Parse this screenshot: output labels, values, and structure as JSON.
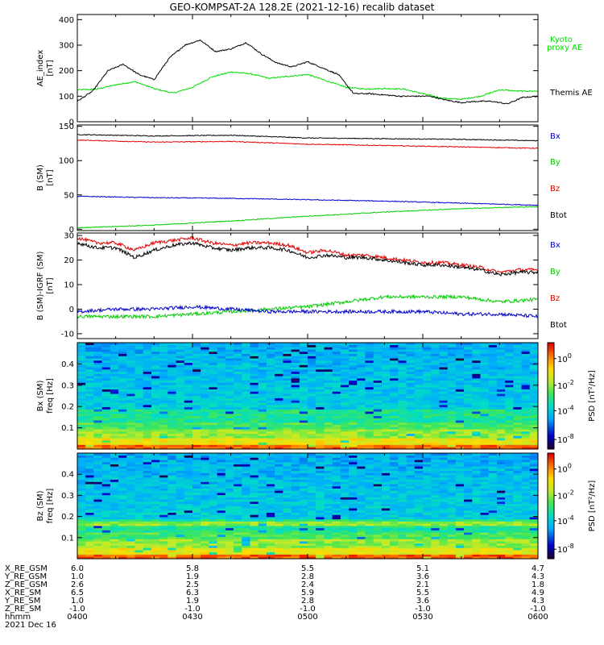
{
  "title": "GEO-KOMPSAT-2A 128.2E (2021-12-16) recalib dataset",
  "colors": {
    "black": "#000000",
    "red": "#e00000",
    "green": "#00cc00",
    "blue": "#0000cc",
    "kyoto": "#00dd00"
  },
  "chart_data": [
    {
      "type": "line",
      "panel": "ae",
      "ylabel_top": "AE_index",
      "ylabel_bottom": "[nT]",
      "ylim": [
        0,
        420
      ],
      "yticks": [
        0,
        100,
        200,
        300,
        400
      ],
      "x_range_hhmm": [
        "0400",
        "0600"
      ],
      "series": [
        {
          "name": "Kyoto proxy AE",
          "color": "#00dd00",
          "x_min": [
            0,
            5,
            10,
            15,
            20,
            25,
            30,
            35,
            40,
            45,
            50,
            55,
            60,
            65,
            70,
            75,
            80,
            85,
            90,
            95,
            100,
            105,
            110,
            115,
            120
          ],
          "values": [
            125,
            127,
            145,
            157,
            130,
            112,
            135,
            175,
            195,
            188,
            170,
            178,
            185,
            160,
            135,
            128,
            130,
            128,
            110,
            92,
            88,
            100,
            125,
            120,
            120
          ]
        },
        {
          "name": "Themis AE",
          "color": "#000000",
          "x_min": [
            0,
            4,
            8,
            12,
            16,
            20,
            24,
            28,
            32,
            36,
            40,
            44,
            48,
            52,
            56,
            60,
            64,
            68,
            72,
            76,
            80,
            84,
            88,
            92,
            96,
            100,
            104,
            108,
            112,
            116,
            120
          ],
          "values": [
            80,
            120,
            200,
            225,
            185,
            165,
            250,
            300,
            320,
            275,
            285,
            310,
            265,
            230,
            215,
            235,
            210,
            185,
            110,
            110,
            105,
            100,
            100,
            100,
            85,
            75,
            80,
            80,
            70,
            95,
            100
          ]
        }
      ],
      "legend": [
        "Kyoto proxy AE",
        "Themis AE"
      ]
    },
    {
      "type": "line",
      "panel": "bsm",
      "ylabel_top": "B (SM)",
      "ylabel_bottom": "[nT]",
      "ylim": [
        -2,
        152
      ],
      "yticks": [
        0,
        50,
        100,
        150
      ],
      "series": [
        {
          "name": "Btot",
          "color": "#000000",
          "x_min": [
            0,
            20,
            40,
            60,
            80,
            100,
            120
          ],
          "values": [
            138,
            136,
            137,
            133,
            132,
            131,
            129
          ]
        },
        {
          "name": "Bz",
          "color": "#e00000",
          "x_min": [
            0,
            20,
            40,
            60,
            80,
            100,
            120
          ],
          "values": [
            130,
            127,
            128,
            124,
            122,
            120,
            118
          ]
        },
        {
          "name": "Bx",
          "color": "#0000cc",
          "x_min": [
            0,
            20,
            40,
            60,
            80,
            100,
            120
          ],
          "values": [
            48,
            46,
            45,
            43,
            41,
            38,
            35
          ]
        },
        {
          "name": "By",
          "color": "#00cc00",
          "x_min": [
            0,
            20,
            40,
            60,
            80,
            100,
            120
          ],
          "values": [
            2,
            6,
            12,
            19,
            25,
            30,
            33
          ]
        }
      ],
      "legend": [
        "Bx",
        "By",
        "Bz",
        "Btot"
      ]
    },
    {
      "type": "line",
      "panel": "dbsm",
      "ylabel_top": "B (SM)-IGRF (SM)",
      "ylabel_bottom": "[nT]",
      "ylim": [
        -12,
        31
      ],
      "yticks": [
        -10,
        0,
        10,
        20,
        30
      ],
      "series": [
        {
          "name": "Bz",
          "color": "#e00000",
          "x_min": [
            0,
            5,
            10,
            15,
            20,
            25,
            30,
            35,
            40,
            45,
            50,
            55,
            60,
            65,
            70,
            75,
            80,
            85,
            90,
            95,
            100,
            105,
            110,
            115,
            120
          ],
          "values": [
            29,
            27,
            27,
            24,
            27,
            28,
            29,
            27,
            26,
            27,
            27,
            26,
            23,
            24,
            22,
            22,
            21,
            20,
            19,
            19,
            18,
            17,
            15,
            16,
            16
          ]
        },
        {
          "name": "Btot",
          "color": "#000000",
          "x_min": [
            0,
            5,
            10,
            15,
            20,
            25,
            30,
            35,
            40,
            45,
            50,
            55,
            60,
            65,
            70,
            75,
            80,
            85,
            90,
            95,
            100,
            105,
            110,
            115,
            120
          ],
          "values": [
            27,
            25,
            25,
            21,
            24,
            26,
            27,
            25,
            24,
            25,
            25,
            24,
            21,
            22,
            21,
            21,
            20,
            19,
            18,
            18,
            17,
            16,
            14,
            15,
            15
          ]
        },
        {
          "name": "By",
          "color": "#00cc00",
          "x_min": [
            0,
            10,
            20,
            30,
            40,
            50,
            60,
            70,
            80,
            90,
            100,
            110,
            120
          ],
          "values": [
            -3,
            -3,
            -3,
            -2,
            -1,
            0,
            1,
            3,
            5,
            5,
            5,
            3,
            4
          ]
        },
        {
          "name": "Bx",
          "color": "#0000cc",
          "x_min": [
            0,
            10,
            20,
            30,
            40,
            50,
            60,
            70,
            80,
            90,
            100,
            110,
            120
          ],
          "values": [
            -1,
            0,
            0,
            1,
            0,
            -1,
            -1,
            -1,
            -1,
            -1,
            -2,
            -2,
            -3
          ]
        }
      ],
      "legend": [
        "Bx",
        "By",
        "Bz",
        "Btot"
      ]
    },
    {
      "type": "heatmap",
      "panel": "specbx",
      "ylabel_top": "Bx (SM)",
      "ylabel_bottom": "freq [Hz]",
      "ylim": [
        0,
        0.5
      ],
      "yticks": [
        0.1,
        0.2,
        0.3,
        0.4
      ],
      "colorbar_label": "PSD [nT²/Hz]",
      "colorbar_ticks": [
        [
          "10",
          "0"
        ],
        [
          "10",
          "-2"
        ],
        [
          "10",
          "-4"
        ],
        [
          "10",
          "-8"
        ]
      ]
    },
    {
      "type": "heatmap",
      "panel": "specbz",
      "ylabel_top": "Bz (SM)",
      "ylabel_bottom": "freq [Hz]",
      "ylim": [
        0,
        0.5
      ],
      "yticks": [
        0.1,
        0.2,
        0.3,
        0.4
      ],
      "colorbar_label": "PSD [nT²/Hz]",
      "colorbar_ticks": [
        [
          "10",
          "0"
        ],
        [
          "10",
          "-2"
        ],
        [
          "10",
          "-4"
        ],
        [
          "10",
          "-8"
        ]
      ]
    }
  ],
  "orbit": {
    "rows": [
      {
        "label": "X_RE_GSM",
        "values": [
          "6.0",
          "5.8",
          "5.5",
          "5.1",
          "4.7"
        ]
      },
      {
        "label": "Y_RE_GSM",
        "values": [
          "1.0",
          "1.9",
          "2.8",
          "3.6",
          "4.3"
        ]
      },
      {
        "label": "Z_RE_GSM",
        "values": [
          "2.6",
          "2.5",
          "2.4",
          "2.1",
          "1.8"
        ]
      },
      {
        "label": "X_RE_SM",
        "values": [
          "6.5",
          "6.3",
          "5.9",
          "5.5",
          "4.9"
        ]
      },
      {
        "label": "Y_RE_SM",
        "values": [
          "1.0",
          "1.9",
          "2.8",
          "3.6",
          "4.3"
        ]
      },
      {
        "label": "Z_RE_SM",
        "values": [
          "-1.0",
          "-1.0",
          "-1.0",
          "-1.0",
          "-1.0"
        ]
      },
      {
        "label": "hhmm",
        "values": [
          "0400",
          "0430",
          "0500",
          "0530",
          "0600"
        ]
      }
    ],
    "date": "2021 Dec 16"
  }
}
